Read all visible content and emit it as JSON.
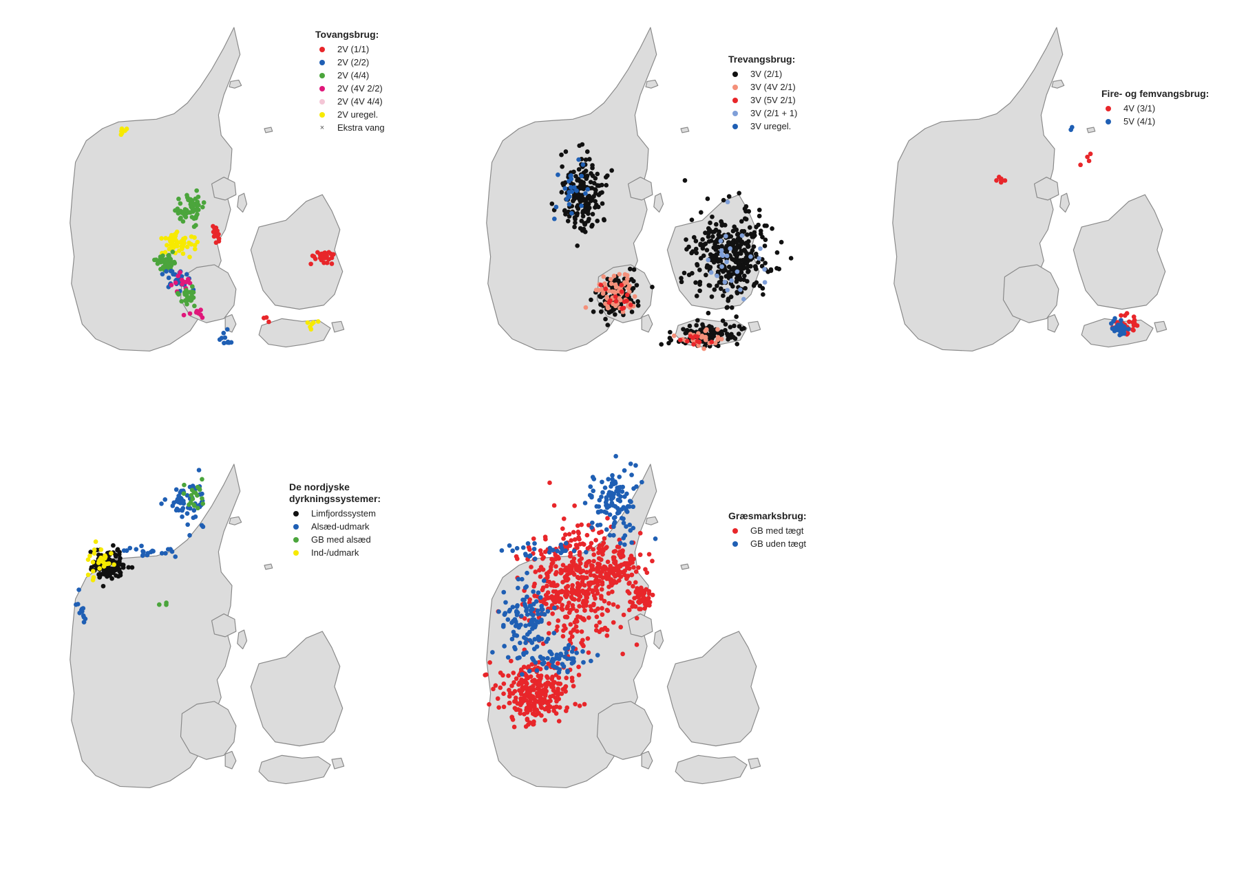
{
  "panels": [
    {
      "id": "tovangsbrug",
      "legend_title": "Tovangsbrug:",
      "items": [
        {
          "label": "2V (1/1)",
          "color": "#e8262a",
          "marker": "dot"
        },
        {
          "label": "2V (2/2)",
          "color": "#1f5fb4",
          "marker": "dot"
        },
        {
          "label": "2V (4/4)",
          "color": "#4ba53c",
          "marker": "dot"
        },
        {
          "label": "2V (4V 2/2)",
          "color": "#e0177a",
          "marker": "dot"
        },
        {
          "label": "2V (4V 4/4)",
          "color": "#f4c6d6",
          "marker": "dot"
        },
        {
          "label": "2V uregel.",
          "color": "#f7ea00",
          "marker": "dot"
        },
        {
          "label": "Ekstra vang",
          "color": "#555555",
          "marker": "cross"
        }
      ]
    },
    {
      "id": "trevangsbrug",
      "legend_title": "Trevangsbrug:",
      "items": [
        {
          "label": "3V (2/1)",
          "color": "#111111",
          "marker": "dot"
        },
        {
          "label": "3V (4V 2/1)",
          "color": "#f4907a",
          "marker": "dot"
        },
        {
          "label": "3V (5V 2/1)",
          "color": "#e8262a",
          "marker": "dot"
        },
        {
          "label": "3V (2/1 + 1)",
          "color": "#7f9fd8",
          "marker": "dot"
        },
        {
          "label": "3V uregel.",
          "color": "#1f5fb4",
          "marker": "dot"
        }
      ]
    },
    {
      "id": "fire-femvangsbrug",
      "legend_title": "Fire- og femvangsbrug:",
      "items": [
        {
          "label": "4V (3/1)",
          "color": "#e8262a",
          "marker": "dot"
        },
        {
          "label": "5V (4/1)",
          "color": "#1f5fb4",
          "marker": "dot"
        }
      ]
    },
    {
      "id": "nordjyske",
      "legend_title": "De nordjyske\ndyrkningssystemer:",
      "items": [
        {
          "label": "Limfjordssystem",
          "color": "#111111",
          "marker": "dot"
        },
        {
          "label": "Alsæd-udmark",
          "color": "#1f5fb4",
          "marker": "dot"
        },
        {
          "label": "GB med alsæd",
          "color": "#4ba53c",
          "marker": "dot"
        },
        {
          "label": "Ind-/udmark",
          "color": "#f7ea00",
          "marker": "dot"
        }
      ]
    },
    {
      "id": "graesmarksbrug",
      "legend_title": "Græsmarksbrug:",
      "items": [
        {
          "label": "GB med tægt",
          "color": "#e8262a",
          "marker": "dot"
        },
        {
          "label": "GB uden tægt",
          "color": "#1f5fb4",
          "marker": "dot"
        }
      ]
    }
  ]
}
